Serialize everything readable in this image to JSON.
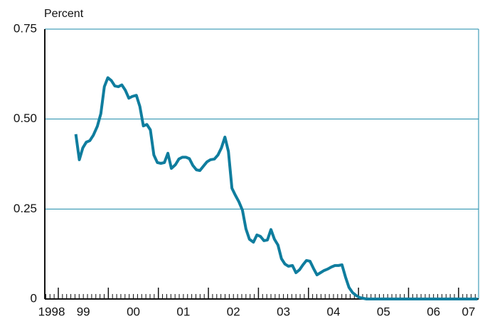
{
  "chart_data": {
    "type": "line",
    "yaxis_label": "Percent",
    "x": [
      1999.35,
      1999.42,
      1999.49,
      1999.56,
      1999.63,
      1999.7,
      1999.78,
      1999.85,
      1999.92,
      1999.99,
      2000.06,
      2000.13,
      2000.2,
      2000.27,
      2000.34,
      2000.41,
      2000.48,
      2000.56,
      2000.63,
      2000.7,
      2000.77,
      2000.84,
      2000.91,
      2000.98,
      2001.05,
      2001.12,
      2001.19,
      2001.26,
      2001.34,
      2001.41,
      2001.48,
      2001.55,
      2001.62,
      2001.69,
      2001.76,
      2001.83,
      2001.9,
      2001.97,
      2002.04,
      2002.12,
      2002.19,
      2002.26,
      2002.33,
      2002.4,
      2002.47,
      2002.54,
      2002.61,
      2002.68,
      2002.75,
      2002.82,
      2002.9,
      2002.97,
      2003.04,
      2003.11,
      2003.18,
      2003.25,
      2003.32,
      2003.39,
      2003.46,
      2003.53,
      2003.6,
      2003.68,
      2003.75,
      2003.82,
      2003.89,
      2003.96,
      2004.03,
      2004.1,
      2004.17,
      2004.24,
      2004.31,
      2004.38,
      2004.46,
      2004.53,
      2004.6,
      2004.67,
      2004.74,
      2004.81,
      2004.88,
      2004.95,
      2005.02,
      2005.09,
      2005.16,
      2007.38
    ],
    "series": [
      {
        "color": "#0f7d9e",
        "values": [
          0.458,
          0.387,
          0.42,
          0.436,
          0.44,
          0.455,
          0.48,
          0.515,
          0.59,
          0.615,
          0.607,
          0.592,
          0.59,
          0.595,
          0.58,
          0.558,
          0.563,
          0.566,
          0.535,
          0.481,
          0.485,
          0.47,
          0.4,
          0.379,
          0.377,
          0.379,
          0.405,
          0.363,
          0.373,
          0.389,
          0.394,
          0.394,
          0.39,
          0.371,
          0.359,
          0.357,
          0.369,
          0.381,
          0.387,
          0.389,
          0.4,
          0.42,
          0.45,
          0.41,
          0.308,
          0.288,
          0.27,
          0.247,
          0.195,
          0.166,
          0.158,
          0.178,
          0.174,
          0.162,
          0.164,
          0.193,
          0.166,
          0.15,
          0.112,
          0.097,
          0.091,
          0.093,
          0.073,
          0.081,
          0.095,
          0.107,
          0.105,
          0.085,
          0.067,
          0.073,
          0.079,
          0.083,
          0.089,
          0.093,
          0.093,
          0.095,
          0.061,
          0.032,
          0.018,
          0.01,
          0.004,
          0.002,
          0,
          0
        ]
      }
    ],
    "xlim": [
      1998.73,
      2007.4
    ],
    "xticks": [
      {
        "value": 1998,
        "label": "1998"
      },
      {
        "value": 1999,
        "label": "99"
      },
      {
        "value": 2000,
        "label": "00"
      },
      {
        "value": 2001,
        "label": "01"
      },
      {
        "value": 2002,
        "label": "02"
      },
      {
        "value": 2003,
        "label": "03"
      },
      {
        "value": 2004,
        "label": "04"
      },
      {
        "value": 2005,
        "label": "05"
      },
      {
        "value": 2006,
        "label": "06"
      },
      {
        "value": 2007,
        "label": "07"
      }
    ],
    "ylim": [
      0,
      0.75
    ],
    "yticks": [
      0,
      0.25,
      {
        "value": 0.5,
        "label": "0.50"
      },
      0.75
    ],
    "grid": true,
    "grid_color": "#1a8aaa"
  }
}
